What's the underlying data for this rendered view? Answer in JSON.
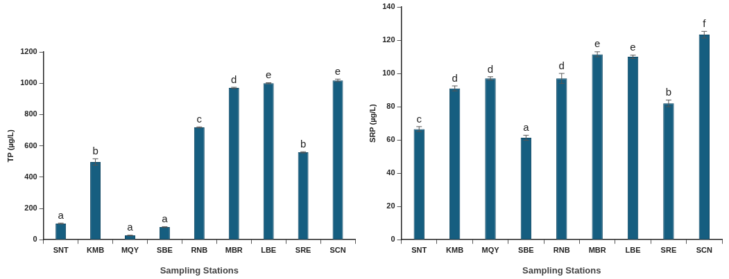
{
  "chart_data": [
    {
      "type": "bar",
      "ylabel": "TP (µg/L)",
      "xlabel": "Sampling Stations",
      "categories": [
        "SNT",
        "KMB",
        "MQY",
        "SBE",
        "RNB",
        "MBR",
        "LBE",
        "SRE",
        "SCN"
      ],
      "series": [
        {
          "color": "#165e80",
          "values": [
            103,
            497,
            27,
            80,
            718,
            970,
            1000,
            558,
            1018
          ],
          "errors": [
            3,
            20,
            2,
            3,
            3,
            4,
            3,
            4,
            8
          ]
        }
      ],
      "ylim": [
        0,
        1200
      ],
      "yticks": [
        0,
        200,
        400,
        600,
        800,
        1000,
        1200
      ],
      "grid": false,
      "legend": false,
      "annotations": [
        {
          "text": "a",
          "x": "SNT",
          "y": 106
        },
        {
          "text": "b",
          "x": "KMB",
          "y": 517
        },
        {
          "text": "a",
          "x": "MQY",
          "y": 29
        },
        {
          "text": "a",
          "x": "SBE",
          "y": 83
        },
        {
          "text": "c",
          "x": "RNB",
          "y": 721
        },
        {
          "text": "d",
          "x": "MBR",
          "y": 974
        },
        {
          "text": "e",
          "x": "LBE",
          "y": 1003
        },
        {
          "text": "b",
          "x": "SRE",
          "y": 562
        },
        {
          "text": "e",
          "x": "SCN",
          "y": 1026
        }
      ]
    },
    {
      "type": "bar",
      "ylabel": "SRP (µg/L)",
      "xlabel": "Sampling Stations",
      "categories": [
        "SNT",
        "KMB",
        "MQY",
        "SBE",
        "RNB",
        "MBR",
        "LBE",
        "SRE",
        "SCN"
      ],
      "series": [
        {
          "color": "#165e80",
          "values": [
            66.5,
            91,
            97,
            61.3,
            97,
            111.5,
            110,
            82,
            123.3
          ],
          "errors": [
            1.5,
            1.5,
            1,
            1.5,
            3,
            1.5,
            1,
            2,
            2
          ]
        }
      ],
      "ylim": [
        0,
        140
      ],
      "yticks": [
        0,
        20,
        40,
        60,
        80,
        100,
        120,
        140
      ],
      "grid": false,
      "legend": false,
      "annotations": [
        {
          "text": "c",
          "x": "SNT",
          "y": 68
        },
        {
          "text": "d",
          "x": "KMB",
          "y": 92.5
        },
        {
          "text": "d",
          "x": "MQY",
          "y": 98
        },
        {
          "text": "a",
          "x": "SBE",
          "y": 62.8
        },
        {
          "text": "d",
          "x": "RNB",
          "y": 100
        },
        {
          "text": "e",
          "x": "MBR",
          "y": 113
        },
        {
          "text": "e",
          "x": "LBE",
          "y": 111
        },
        {
          "text": "b",
          "x": "SRE",
          "y": 84
        },
        {
          "text": "f",
          "x": "SCN",
          "y": 125.3
        }
      ]
    }
  ]
}
